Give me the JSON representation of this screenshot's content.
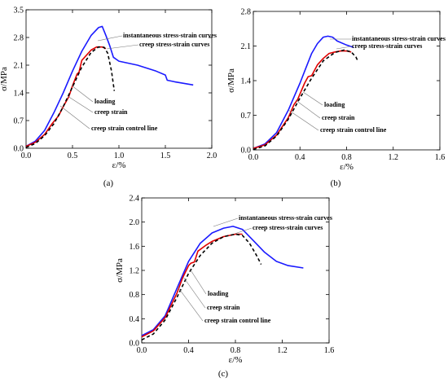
{
  "chart_data": [
    {
      "type": "line",
      "panel_label": "(a)",
      "xlabel": "ε/%",
      "ylabel": "σ/MPa",
      "xlim": [
        0,
        2.0
      ],
      "ylim": [
        0,
        3.5
      ],
      "xticks": [
        "0.0",
        "0.5",
        "1.0",
        "1.5",
        "2.0"
      ],
      "yticks": [
        "0.0",
        "0.7",
        "1.4",
        "2.1",
        "2.8",
        "3.5"
      ],
      "annotations": [
        "instantaneous stress-strain curves",
        "creep stress-strain curves",
        "loading",
        "creep strain",
        "creep strain control line"
      ],
      "series": [
        {
          "name": "instantaneous stress-strain curves",
          "color": "#1a1aff",
          "style": "solid",
          "points": [
            [
              0,
              0.05
            ],
            [
              0.1,
              0.18
            ],
            [
              0.2,
              0.45
            ],
            [
              0.3,
              0.9
            ],
            [
              0.4,
              1.4
            ],
            [
              0.5,
              1.95
            ],
            [
              0.6,
              2.45
            ],
            [
              0.7,
              2.85
            ],
            [
              0.78,
              3.05
            ],
            [
              0.82,
              3.08
            ],
            [
              0.86,
              2.85
            ],
            [
              0.9,
              2.6
            ],
            [
              0.94,
              2.3
            ],
            [
              1.0,
              2.2
            ],
            [
              1.2,
              2.1
            ],
            [
              1.4,
              1.95
            ],
            [
              1.5,
              1.85
            ],
            [
              1.52,
              1.72
            ],
            [
              1.6,
              1.68
            ],
            [
              1.8,
              1.6
            ]
          ]
        },
        {
          "name": "creep stress-strain curves",
          "color": "#e00000",
          "style": "solid",
          "points": [
            [
              0,
              0.05
            ],
            [
              0.1,
              0.15
            ],
            [
              0.2,
              0.35
            ],
            [
              0.28,
              0.62
            ],
            [
              0.35,
              0.82
            ],
            [
              0.4,
              1.05
            ],
            [
              0.44,
              1.22
            ],
            [
              0.46,
              1.3
            ],
            [
              0.5,
              1.58
            ],
            [
              0.55,
              1.88
            ],
            [
              0.57,
              1.92
            ],
            [
              0.6,
              2.22
            ],
            [
              0.7,
              2.48
            ],
            [
              0.76,
              2.56
            ],
            [
              0.82,
              2.56
            ],
            [
              0.86,
              2.52
            ]
          ]
        },
        {
          "name": "creep strain control line",
          "color": "#000000",
          "style": "dashed",
          "points": [
            [
              0,
              0.02
            ],
            [
              0.1,
              0.12
            ],
            [
              0.2,
              0.32
            ],
            [
              0.3,
              0.62
            ],
            [
              0.4,
              1.05
            ],
            [
              0.5,
              1.55
            ],
            [
              0.6,
              2.05
            ],
            [
              0.7,
              2.42
            ],
            [
              0.78,
              2.56
            ],
            [
              0.84,
              2.55
            ],
            [
              0.88,
              2.4
            ],
            [
              0.92,
              1.95
            ],
            [
              0.95,
              1.45
            ]
          ]
        }
      ]
    },
    {
      "type": "line",
      "panel_label": "(b)",
      "xlabel": "ε/%",
      "ylabel": "σ/MPa",
      "xlim": [
        0,
        1.6
      ],
      "ylim": [
        0,
        2.8
      ],
      "xticks": [
        "0.0",
        "0.4",
        "0.8",
        "1.2",
        "1.6"
      ],
      "yticks": [
        "0.0",
        "0.7",
        "1.4",
        "2.1",
        "2.8"
      ],
      "annotations": [
        "instantaneous stress-strain curves",
        "creep stress-strain curves",
        "loading",
        "creep strain",
        "creep strain control line"
      ],
      "series": [
        {
          "name": "instantaneous stress-strain curves",
          "color": "#1a1aff",
          "style": "solid",
          "points": [
            [
              0,
              0.03
            ],
            [
              0.1,
              0.12
            ],
            [
              0.2,
              0.35
            ],
            [
              0.3,
              0.8
            ],
            [
              0.4,
              1.35
            ],
            [
              0.45,
              1.65
            ],
            [
              0.5,
              1.95
            ],
            [
              0.55,
              2.15
            ],
            [
              0.6,
              2.28
            ],
            [
              0.64,
              2.3
            ],
            [
              0.68,
              2.28
            ],
            [
              0.72,
              2.2
            ],
            [
              0.8,
              2.12
            ],
            [
              0.86,
              2.07
            ]
          ]
        },
        {
          "name": "creep stress-strain curves",
          "color": "#e00000",
          "style": "solid",
          "points": [
            [
              0,
              0.03
            ],
            [
              0.1,
              0.1
            ],
            [
              0.2,
              0.3
            ],
            [
              0.3,
              0.65
            ],
            [
              0.35,
              0.92
            ],
            [
              0.38,
              1.02
            ],
            [
              0.44,
              1.35
            ],
            [
              0.47,
              1.48
            ],
            [
              0.5,
              1.5
            ],
            [
              0.55,
              1.72
            ],
            [
              0.6,
              1.85
            ],
            [
              0.65,
              1.95
            ],
            [
              0.7,
              1.98
            ],
            [
              0.75,
              2.0
            ],
            [
              0.8,
              2.0
            ],
            [
              0.84,
              1.98
            ]
          ]
        },
        {
          "name": "creep strain control line",
          "color": "#000000",
          "style": "dashed",
          "points": [
            [
              0,
              0.01
            ],
            [
              0.1,
              0.08
            ],
            [
              0.2,
              0.28
            ],
            [
              0.3,
              0.62
            ],
            [
              0.4,
              1.05
            ],
            [
              0.5,
              1.45
            ],
            [
              0.6,
              1.8
            ],
            [
              0.7,
              1.97
            ],
            [
              0.78,
              2.02
            ],
            [
              0.84,
              1.98
            ],
            [
              0.88,
              1.88
            ],
            [
              0.9,
              1.78
            ]
          ]
        }
      ]
    },
    {
      "type": "line",
      "panel_label": "(c)",
      "xlabel": "ε/%",
      "ylabel": "σ/MPa",
      "xlim": [
        0,
        1.6
      ],
      "ylim": [
        0,
        2.4
      ],
      "xticks": [
        "0.0",
        "0.4",
        "0.8",
        "1.2",
        "1.6"
      ],
      "yticks": [
        "0.0",
        "0.4",
        "0.8",
        "1.2",
        "1.6",
        "2.0",
        "2.4"
      ],
      "annotations": [
        "instantaneous stress-strain curves",
        "creep stress-strain curves",
        "loading",
        "creep strain",
        "creep strain control line"
      ],
      "series": [
        {
          "name": "instantaneous stress-strain curves",
          "color": "#1a1aff",
          "style": "solid",
          "points": [
            [
              0,
              0.12
            ],
            [
              0.1,
              0.22
            ],
            [
              0.2,
              0.45
            ],
            [
              0.3,
              0.9
            ],
            [
              0.4,
              1.35
            ],
            [
              0.5,
              1.65
            ],
            [
              0.6,
              1.82
            ],
            [
              0.7,
              1.9
            ],
            [
              0.78,
              1.93
            ],
            [
              0.86,
              1.88
            ],
            [
              0.95,
              1.7
            ],
            [
              1.05,
              1.5
            ],
            [
              1.15,
              1.35
            ],
            [
              1.25,
              1.28
            ],
            [
              1.38,
              1.24
            ]
          ]
        },
        {
          "name": "creep stress-strain curves",
          "color": "#e00000",
          "style": "solid",
          "points": [
            [
              0,
              0.1
            ],
            [
              0.1,
              0.2
            ],
            [
              0.2,
              0.42
            ],
            [
              0.3,
              0.82
            ],
            [
              0.35,
              1.08
            ],
            [
              0.4,
              1.28
            ],
            [
              0.42,
              1.32
            ],
            [
              0.45,
              1.34
            ],
            [
              0.48,
              1.52
            ],
            [
              0.55,
              1.62
            ],
            [
              0.6,
              1.68
            ],
            [
              0.7,
              1.76
            ],
            [
              0.8,
              1.8
            ],
            [
              0.86,
              1.8
            ]
          ]
        },
        {
          "name": "creep strain control line",
          "color": "#000000",
          "style": "dashed",
          "points": [
            [
              0,
              0.05
            ],
            [
              0.1,
              0.15
            ],
            [
              0.2,
              0.38
            ],
            [
              0.3,
              0.75
            ],
            [
              0.4,
              1.15
            ],
            [
              0.5,
              1.45
            ],
            [
              0.6,
              1.65
            ],
            [
              0.7,
              1.76
            ],
            [
              0.8,
              1.8
            ],
            [
              0.86,
              1.78
            ],
            [
              0.92,
              1.65
            ],
            [
              0.98,
              1.45
            ],
            [
              1.02,
              1.3
            ]
          ]
        }
      ]
    }
  ]
}
